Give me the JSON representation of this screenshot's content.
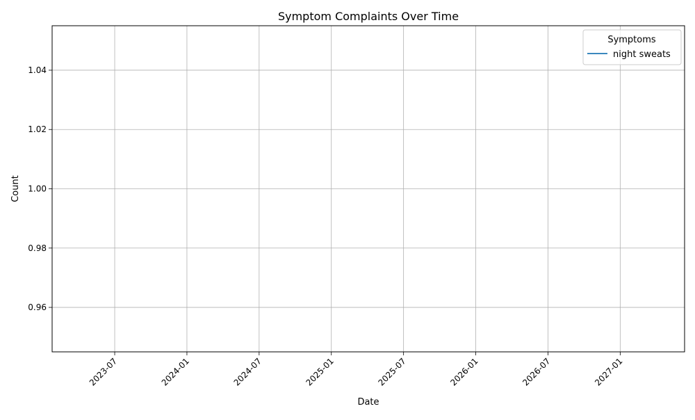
{
  "chart_data": {
    "type": "line",
    "title": "Symptom Complaints Over Time",
    "xlabel": "Date",
    "ylabel": "Count",
    "x_ticks": [
      "2023-07",
      "2024-01",
      "2024-07",
      "2025-01",
      "2025-07",
      "2026-01",
      "2026-07",
      "2027-01"
    ],
    "y_ticks": [
      "0.96",
      "0.98",
      "1.00",
      "1.02",
      "1.04"
    ],
    "ylim": [
      0.945,
      1.055
    ],
    "xlim": [
      "2023-02",
      "2027-06"
    ],
    "grid": true,
    "legend": {
      "title": "Symptoms",
      "placement": "top-right"
    },
    "series": [
      {
        "name": "night sweats",
        "color": "#1f77b4",
        "x": [],
        "y": []
      }
    ]
  }
}
